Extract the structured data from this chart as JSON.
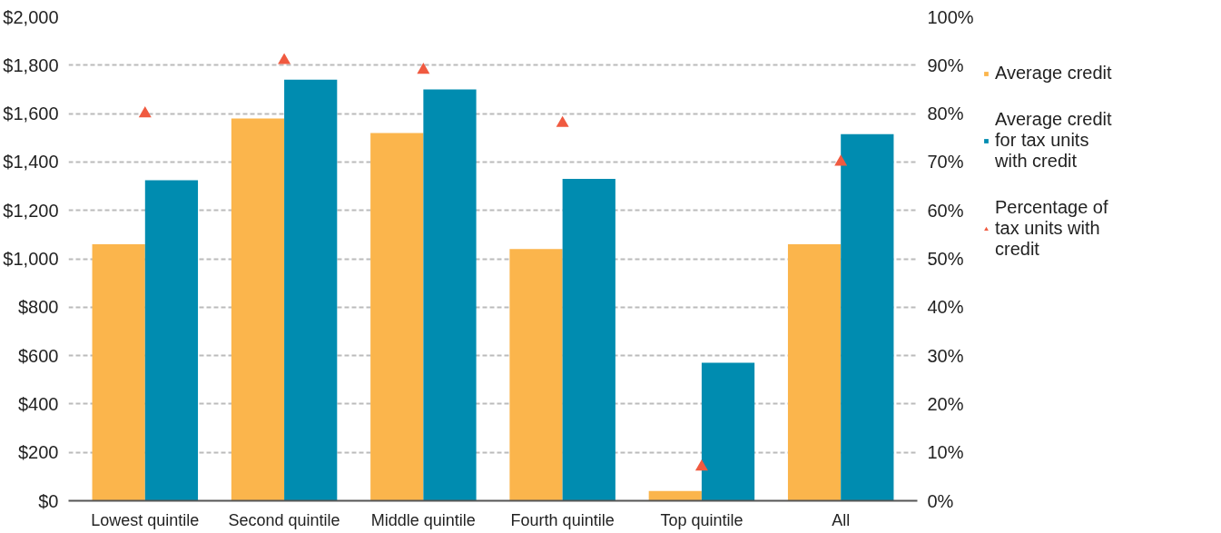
{
  "chart_data": {
    "type": "bar",
    "categories": [
      "Lowest quintile",
      "Second quintile",
      "Middle quintile",
      "Fourth quintile",
      "Top quintile",
      "All"
    ],
    "series": [
      {
        "name": "Average credit",
        "color": "#fbb54c",
        "values": [
          1060,
          1580,
          1520,
          1040,
          40,
          1060
        ]
      },
      {
        "name": "Average credit for tax units with credit",
        "color": "#008cb0",
        "values": [
          1325,
          1740,
          1700,
          1330,
          570,
          1515
        ]
      },
      {
        "name": "Percentage of tax units with credit",
        "type": "scatter",
        "axis": "y2",
        "marker": "triangle",
        "color": "#f05a40",
        "values": [
          80,
          91,
          89,
          78,
          7,
          70
        ]
      }
    ],
    "ylim": [
      0,
      2000
    ],
    "yticks": [
      {
        "value": 0,
        "label": "$0"
      },
      {
        "value": 200,
        "label": "$200"
      },
      {
        "value": 400,
        "label": "$400"
      },
      {
        "value": 600,
        "label": "$600"
      },
      {
        "value": 800,
        "label": "$800"
      },
      {
        "value": 1000,
        "label": "$1,000"
      },
      {
        "value": 1200,
        "label": "$1,200"
      },
      {
        "value": 1400,
        "label": "$1,400"
      },
      {
        "value": 1600,
        "label": "$1,600"
      },
      {
        "value": 1800,
        "label": "$1,800"
      },
      {
        "value": 2000,
        "label": "$2,000"
      }
    ],
    "y2lim": [
      0,
      100
    ],
    "y2ticks": [
      {
        "value": 0,
        "label": "0%"
      },
      {
        "value": 10,
        "label": "10%"
      },
      {
        "value": 20,
        "label": "20%"
      },
      {
        "value": 30,
        "label": "30%"
      },
      {
        "value": 40,
        "label": "40%"
      },
      {
        "value": 50,
        "label": "50%"
      },
      {
        "value": 60,
        "label": "60%"
      },
      {
        "value": 70,
        "label": "70%"
      },
      {
        "value": 80,
        "label": "80%"
      },
      {
        "value": 90,
        "label": "90%"
      },
      {
        "value": 100,
        "label": "100%"
      }
    ],
    "grid": "y",
    "legend": "right"
  }
}
